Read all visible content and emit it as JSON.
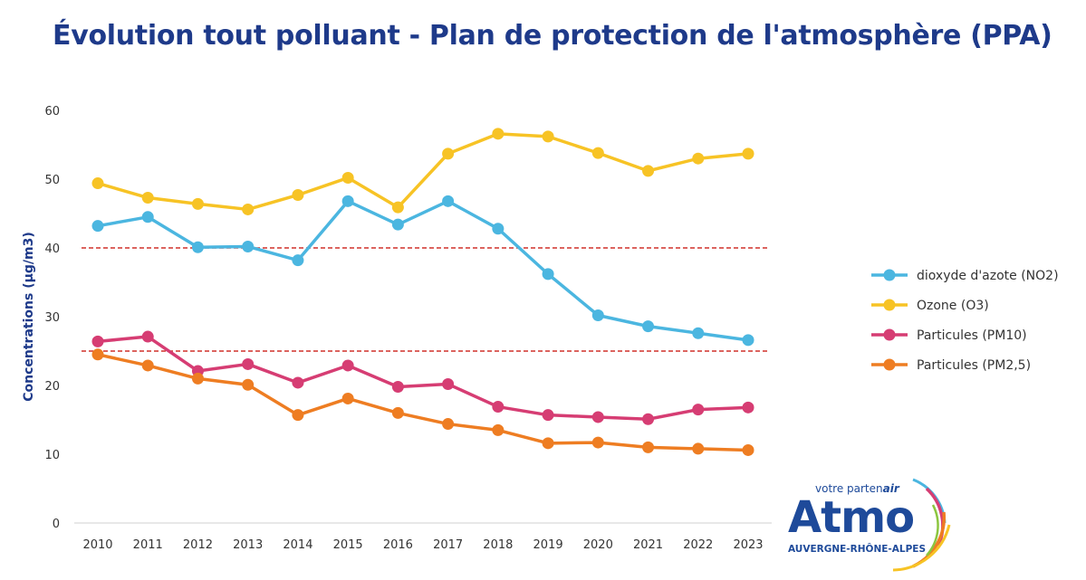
{
  "chart_data": {
    "type": "line",
    "title": "Évolution tout polluant - Plan de protection de l'atmosphère (PPA)",
    "xlabel": "",
    "ylabel": "Concentrations (µg/m3)",
    "ylim": [
      0,
      60
    ],
    "yticks": [
      0,
      10,
      20,
      30,
      40,
      50,
      60
    ],
    "grid": false,
    "legend": "right",
    "categories": [
      "2010",
      "2011",
      "2012",
      "2013",
      "2014",
      "2015",
      "2016",
      "2017",
      "2018",
      "2019",
      "2020",
      "2021",
      "2022",
      "2023"
    ],
    "series": [
      {
        "name": "dioxyde d'azote (NO2)",
        "color": "#4bb6e0",
        "values": [
          43.2,
          44.5,
          40.1,
          40.2,
          38.2,
          46.8,
          43.4,
          46.8,
          42.8,
          36.2,
          30.2,
          28.6,
          27.6,
          26.6
        ]
      },
      {
        "name": "Ozone (O3)",
        "color": "#f7c325",
        "values": [
          49.4,
          47.3,
          46.4,
          45.6,
          47.7,
          50.2,
          45.9,
          53.7,
          56.6,
          56.2,
          53.8,
          51.2,
          53.0,
          53.7
        ]
      },
      {
        "name": "Particules (PM10)",
        "color": "#d63d73",
        "values": [
          26.4,
          27.1,
          22.1,
          23.1,
          20.4,
          22.9,
          19.8,
          20.2,
          16.9,
          15.7,
          15.4,
          15.1,
          16.5,
          16.8
        ]
      },
      {
        "name": "Particules (PM2,5)",
        "color": "#ee7d22",
        "values": [
          24.5,
          22.9,
          21.0,
          20.1,
          15.7,
          18.1,
          16.0,
          14.4,
          13.5,
          11.6,
          11.7,
          11.0,
          10.8,
          10.6
        ]
      }
    ],
    "reference_lines": [
      {
        "value": 40,
        "color": "#d0302a",
        "style": "dashed"
      },
      {
        "value": 25,
        "color": "#d0302a",
        "style": "dashed"
      }
    ]
  },
  "logo": {
    "tagline_prefix": "votre parten",
    "tagline_suffix": "air",
    "name": "Atmo",
    "region": "AUVERGNE-RHÔNE-ALPES",
    "color": "#1e4a9a"
  }
}
